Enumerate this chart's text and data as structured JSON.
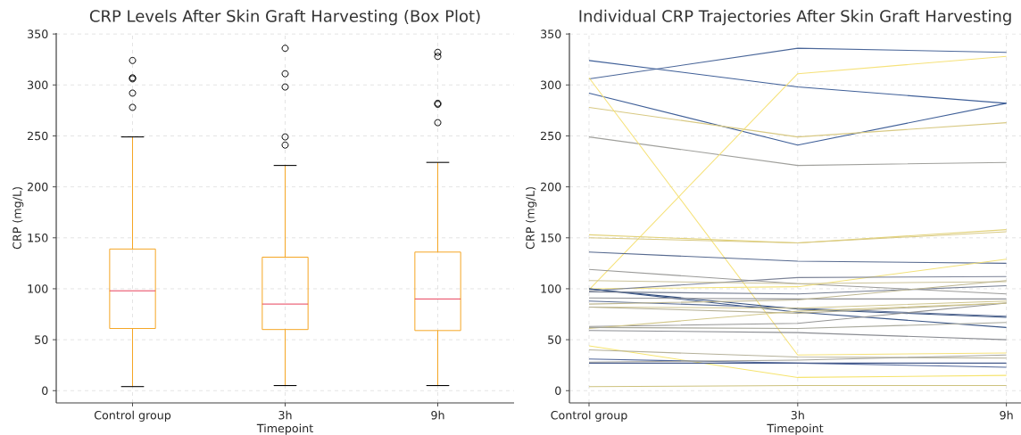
{
  "chart_data": [
    {
      "type": "box",
      "title": "CRP Levels After Skin Graft Harvesting (Box Plot)",
      "xlabel": "Timepoint",
      "ylabel": "CRP (mg/L)",
      "categories": [
        "Control group",
        "3h",
        "9h"
      ],
      "color": "#f5a623",
      "grid": true,
      "ylim": [
        -12,
        351
      ],
      "yticks": [
        0,
        50,
        100,
        150,
        200,
        250,
        300,
        350
      ],
      "boxes": [
        {
          "low": 4,
          "q1": 61,
          "median": 98,
          "q3": 139,
          "high": 249,
          "outliers": [
            278,
            292,
            306,
            307,
            324
          ]
        },
        {
          "low": 5,
          "q1": 60,
          "median": 85,
          "q3": 131,
          "high": 221,
          "outliers": [
            241,
            249,
            298,
            311,
            336
          ]
        },
        {
          "low": 5,
          "q1": 59,
          "median": 90,
          "q3": 136,
          "high": 224,
          "outliers": [
            263,
            281,
            282,
            328,
            332
          ]
        }
      ]
    },
    {
      "type": "line",
      "title": "Individual CRP Trajectories After Skin Graft Harvesting",
      "xlabel": "Timepoint",
      "ylabel": "CRP (mg/L)",
      "categories": [
        "Control group",
        "3h",
        "9h"
      ],
      "grid": true,
      "ylim": [
        -12,
        351
      ],
      "yticks": [
        0,
        50,
        100,
        150,
        200,
        250,
        300,
        350
      ],
      "series": [
        {
          "color": "#4a6699",
          "values": [
            306,
            336,
            332
          ]
        },
        {
          "color": "#3f5f98",
          "values": [
            324,
            298,
            282
          ]
        },
        {
          "color": "#3f5f98",
          "values": [
            292,
            241,
            282
          ]
        },
        {
          "color": "#d8c983",
          "values": [
            278,
            249,
            263
          ]
        },
        {
          "color": "#a0a09c",
          "values": [
            249,
            221,
            224
          ]
        },
        {
          "color": "#f6e27a",
          "values": [
            307,
            35,
            37
          ]
        },
        {
          "color": "#f6e27a",
          "values": [
            99,
            311,
            328
          ]
        },
        {
          "color": "#e2d27a",
          "values": [
            153,
            145,
            158
          ]
        },
        {
          "color": "#d8c983",
          "values": [
            150,
            145,
            156
          ]
        },
        {
          "color": "#56698f",
          "values": [
            136,
            127,
            125
          ]
        },
        {
          "color": "#9a9a98",
          "values": [
            119,
            105,
            95
          ]
        },
        {
          "color": "#f3e27a",
          "values": [
            100,
            102,
            129
          ]
        },
        {
          "color": "#7b8296",
          "values": [
            98,
            111,
            112
          ]
        },
        {
          "color": "#cbc39a",
          "values": [
            108,
            105,
            107
          ]
        },
        {
          "color": "#2f4a7a",
          "values": [
            100,
            80,
            72
          ]
        },
        {
          "color": "#3a5586",
          "values": [
            100,
            77,
            62
          ]
        },
        {
          "color": "#767f93",
          "values": [
            97,
            95,
            103
          ]
        },
        {
          "color": "#8d8f94",
          "values": [
            91,
            90,
            90
          ]
        },
        {
          "color": "#5a6d95",
          "values": [
            88,
            81,
            73
          ]
        },
        {
          "color": "#bdb691",
          "values": [
            85,
            89,
            108
          ]
        },
        {
          "color": "#cfc58e",
          "values": [
            82,
            81,
            88
          ]
        },
        {
          "color": "#b3ae94",
          "values": [
            82,
            76,
            86
          ]
        },
        {
          "color": "#959595",
          "values": [
            63,
            66,
            86
          ]
        },
        {
          "color": "#d2c78a",
          "values": [
            61,
            78,
            86
          ]
        },
        {
          "color": "#a7a79a",
          "values": [
            62,
            61,
            67
          ]
        },
        {
          "color": "#8a8c92",
          "values": [
            59,
            57,
            50
          ]
        },
        {
          "color": "#f6e46e",
          "values": [
            44,
            13,
            15
          ]
        },
        {
          "color": "#b5b19a",
          "values": [
            40,
            33,
            32
          ]
        },
        {
          "color": "#50669a",
          "values": [
            31,
            27,
            23
          ]
        },
        {
          "color": "#a5a49c",
          "values": [
            28,
            30,
            35
          ]
        },
        {
          "color": "#44598a",
          "values": [
            27,
            27,
            27
          ]
        },
        {
          "color": "#cdc27e",
          "values": [
            4,
            5,
            5
          ]
        }
      ]
    }
  ]
}
